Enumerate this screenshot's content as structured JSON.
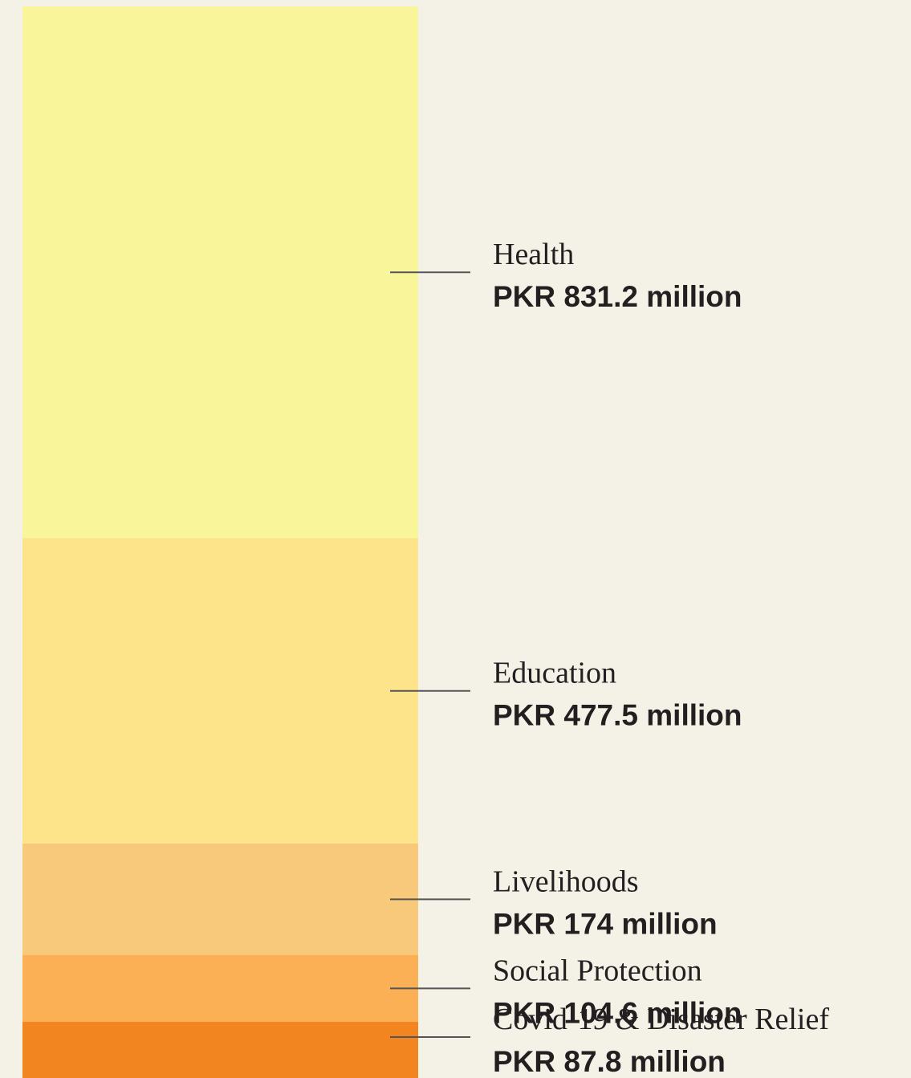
{
  "chart_data": {
    "type": "stacked-bar",
    "categories": [
      "Health",
      "Education",
      "Livelihoods",
      "Social Protection",
      "Covid-19 & Disaster Relief"
    ],
    "values": [
      831.2,
      477.5,
      174,
      104.6,
      87.8
    ],
    "value_labels": [
      "PKR 831.2 million",
      "PKR 477.5 million",
      "PKR 174 million",
      "PKR 104.6 million",
      "PKR 87.8 million"
    ],
    "colors": [
      "#f8f59a",
      "#fde48a",
      "#f8c97a",
      "#fbb055",
      "#f38520"
    ]
  }
}
